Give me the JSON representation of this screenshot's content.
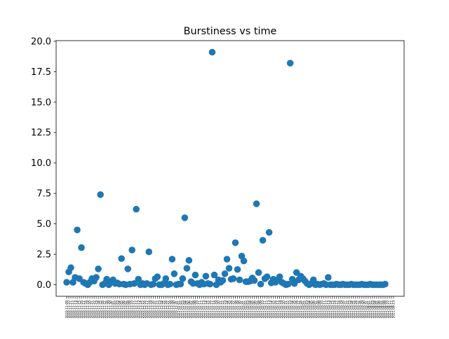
{
  "chart_data": {
    "type": "scatter",
    "title": "Burstiness vs time",
    "xlabel": "",
    "ylabel": "",
    "ylim": [
      -0.95,
      20.05
    ],
    "yticks": [
      "0.0",
      "2.5",
      "5.0",
      "7.5",
      "10.0",
      "12.5",
      "15.0",
      "17.5",
      "20.0"
    ],
    "ytick_values": [
      0,
      2.5,
      5,
      7.5,
      10,
      12.5,
      15,
      17.5,
      20
    ],
    "grid": false,
    "legend": "none",
    "color": "#1f77b4",
    "categories": [
      "2020-11-09",
      "2020-11-10",
      "2020-11-11",
      "2020-11-12",
      "2020-11-13",
      "2020-11-14",
      "2020-11-15",
      "2020-11-16",
      "2020-11-17",
      "2020-11-18",
      "2020-11-19",
      "2020-11-20",
      "2020-11-21",
      "2020-11-22",
      "2020-11-23",
      "2020-11-24",
      "2020-11-25",
      "2020-11-26",
      "2020-11-27",
      "2020-11-28",
      "2020-11-29",
      "2020-11-30",
      "2020-12-01",
      "2020-12-02",
      "2020-12-03",
      "2020-12-04",
      "2020-12-05",
      "2020-12-06",
      "2020-12-07",
      "2020-12-08",
      "2020-12-09",
      "2020-12-10",
      "2020-12-11",
      "2020-12-12",
      "2020-12-13",
      "2020-12-14",
      "2020-12-15",
      "2020-12-16",
      "2020-12-17",
      "2020-12-18",
      "2020-12-19",
      "2020-12-20",
      "2020-12-21",
      "2020-12-22",
      "2020-12-23",
      "2020-12-24",
      "2020-12-25",
      "2020-12-26",
      "2020-12-27",
      "2020-12-28",
      "2020-12-29",
      "2020-12-30",
      "2020-12-31",
      "2021-01-01",
      "2021-01-02",
      "2021-01-03",
      "2021-01-04",
      "2021-01-05",
      "2021-01-06",
      "2021-01-07",
      "2021-01-08",
      "2021-01-09",
      "2021-01-10",
      "2021-01-11",
      "2021-01-12",
      "2021-01-13",
      "2021-01-14",
      "2021-01-15",
      "2021-01-16",
      "2021-01-17",
      "2021-01-18",
      "2021-01-19",
      "2021-01-20",
      "2021-01-21",
      "2021-01-22",
      "2021-01-23",
      "2021-01-24",
      "2021-01-25",
      "2021-01-26",
      "2021-01-27",
      "2021-01-28",
      "2021-01-29",
      "2021-01-30",
      "2021-01-31",
      "2021-02-01",
      "2021-02-02",
      "2021-02-03",
      "2021-02-04",
      "2021-02-05",
      "2021-02-06",
      "2021-02-07",
      "2021-02-08",
      "2021-02-09",
      "2021-02-10",
      "2021-02-11",
      "2021-02-12",
      "2021-02-13",
      "2021-02-14",
      "2021-02-15",
      "2021-02-16",
      "2021-02-17",
      "2021-02-18",
      "2021-02-19",
      "2021-02-20",
      "2021-02-21",
      "2021-02-22",
      "2021-02-23",
      "2021-02-24",
      "2021-02-25",
      "2021-02-26",
      "2021-02-27",
      "2021-02-28",
      "2021-03-01",
      "2021-03-02",
      "2021-03-03",
      "2021-03-04",
      "2021-03-05",
      "2021-03-06",
      "2021-03-07",
      "2021-03-08",
      "2021-03-09",
      "2021-03-10",
      "2021-03-11",
      "2021-03-12",
      "2021-03-13",
      "2021-03-14",
      "2021-03-15",
      "2021-03-16",
      "2021-03-17",
      "2021-03-18",
      "2021-03-19",
      "2021-03-20",
      "2021-03-21",
      "2021-03-22",
      "2021-03-23",
      "2021-03-24",
      "2021-03-25",
      "2021-03-26",
      "2021-03-27",
      "2021-03-28",
      "2021-03-29",
      "2021-03-30",
      "2021-03-31",
      "2021-04-01",
      "2021-04-02",
      "2021-04-03",
      "2021-04-04",
      "2021-04-05",
      "2021-04-06",
      "2021-04-07",
      "2021-04-08",
      "2021-04-09",
      "2021-04-10",
      "2021-04-11",
      "2021-04-12",
      "2021-04-13"
    ],
    "series": [
      {
        "values": [
          0.2,
          1.05,
          1.4,
          0.2,
          0.6,
          4.5,
          0.5,
          3.05,
          0.2,
          0.1,
          0.0,
          0.2,
          0.5,
          0.3,
          0.6,
          1.3,
          7.4,
          0.0,
          0.1,
          0.45,
          0.0,
          0.2,
          0.4,
          0.1,
          0.15,
          0.05,
          2.15,
          0.05,
          0.0,
          1.3,
          0.05,
          2.85,
          0.1,
          6.2,
          0.45,
          0.0,
          0.1,
          0.0,
          0.1,
          2.7,
          0.0,
          0.05,
          0.5,
          0.65,
          0.0,
          0.0,
          0.1,
          0.5,
          0.0,
          0.05,
          2.1,
          0.9,
          0.0,
          0.05,
          0.05,
          0.5,
          5.5,
          1.35,
          2.0,
          0.25,
          0.1,
          0.8,
          0.1,
          0.0,
          0.2,
          0.05,
          0.7,
          0.1,
          0.05,
          19.1,
          0.8,
          0.0,
          0.4,
          0.2,
          0.35,
          0.9,
          2.1,
          1.35,
          0.45,
          0.5,
          3.45,
          1.25,
          0.4,
          2.35,
          1.95,
          0.25,
          0.25,
          0.3,
          0.55,
          0.35,
          6.65,
          1.0,
          0.05,
          3.65,
          0.5,
          0.65,
          4.3,
          0.15,
          0.45,
          0.2,
          0.4,
          0.65,
          0.2,
          0.1,
          0.0,
          0.05,
          18.2,
          0.45,
          0.1,
          1.0,
          0.4,
          0.7,
          0.5,
          0.3,
          0.1,
          0.0,
          0.1,
          0.4,
          0.0,
          0.05,
          0.0,
          0.05,
          0.1,
          0.0,
          0.6,
          0.0,
          0.0,
          0.0,
          0.05,
          0.0,
          0.0,
          0.05,
          0.0,
          0.0,
          0.0,
          0.05,
          0.0,
          0.0,
          0.0,
          0.0,
          0.05,
          0.0,
          0.0,
          0.0,
          0.05,
          0.0,
          0.0,
          0.0,
          0.0,
          0.0,
          0.0,
          0.05
        ]
      }
    ]
  }
}
